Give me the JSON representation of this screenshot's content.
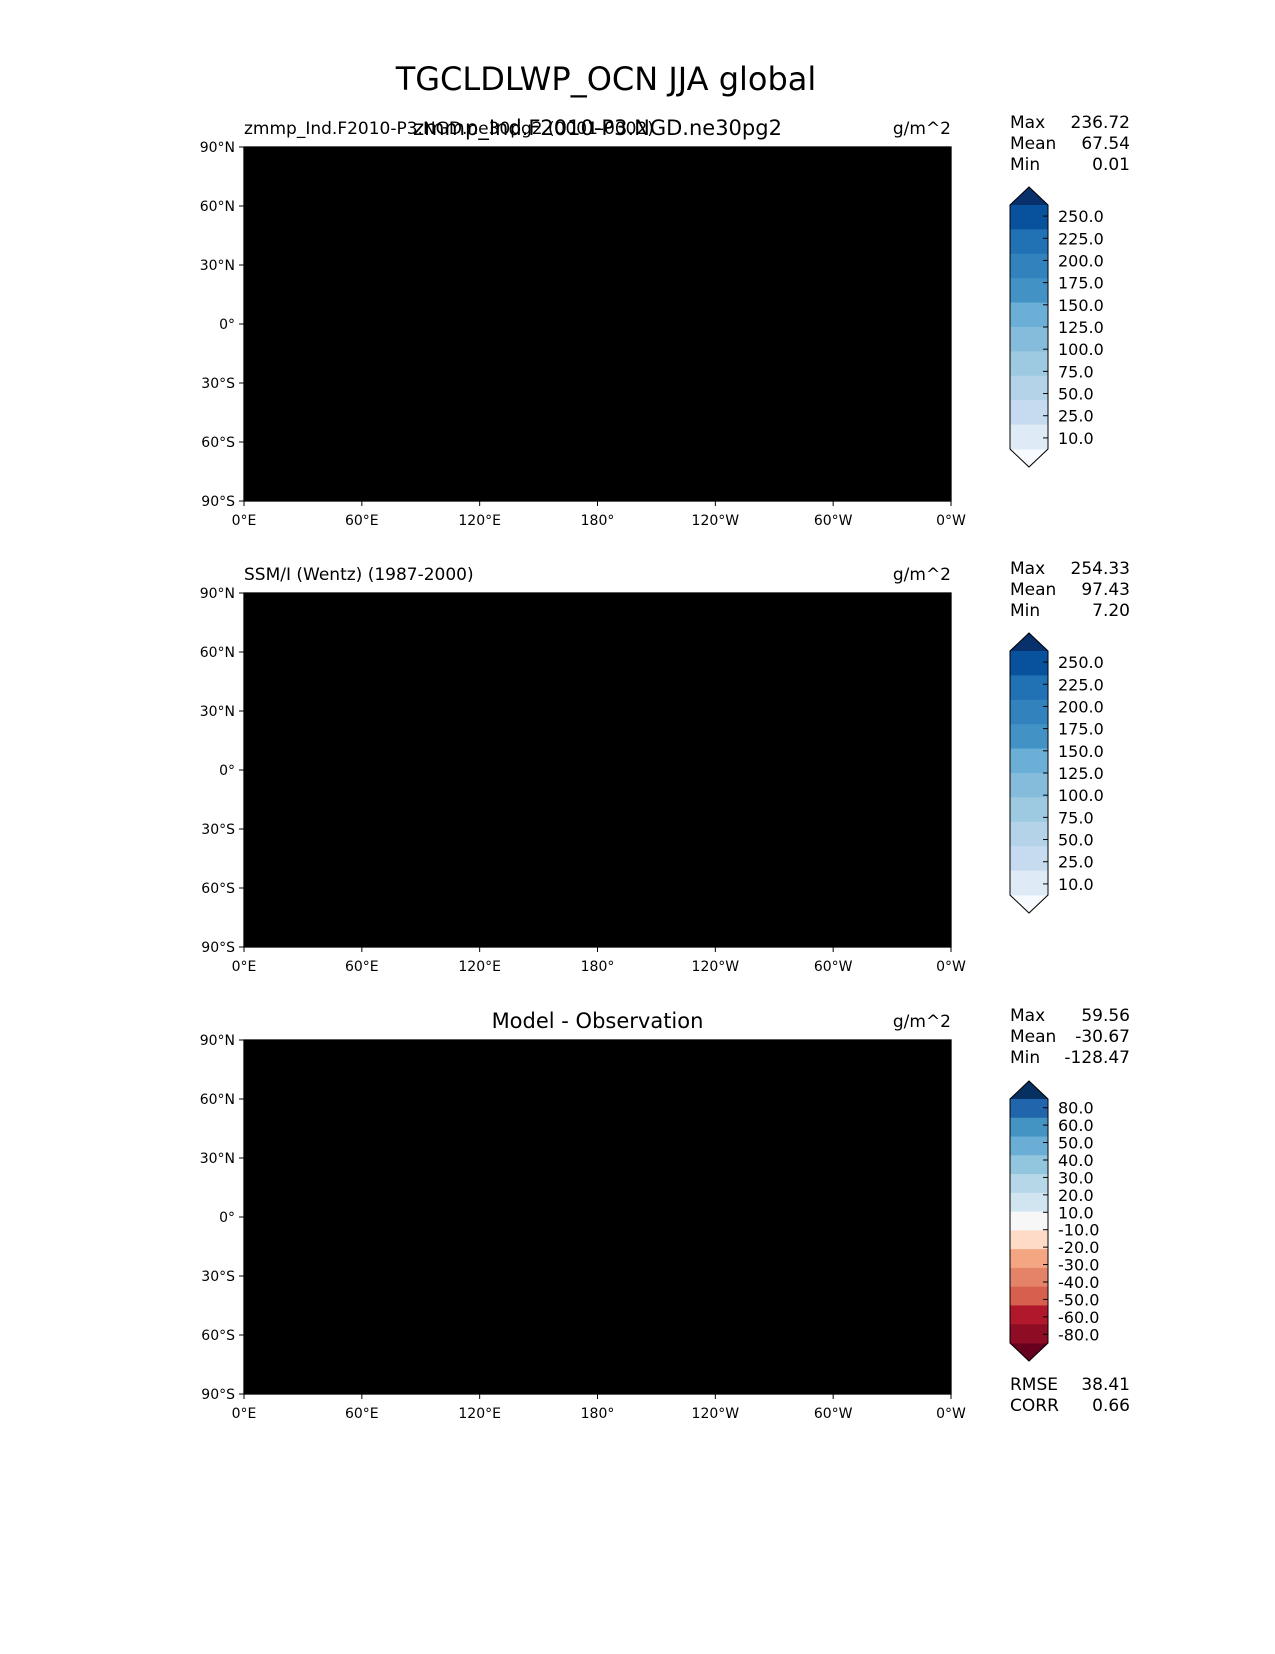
{
  "title": "TGCLDLWP_OCN JJA global",
  "lon_ticks": [
    "0°E",
    "60°E",
    "120°E",
    "180°",
    "120°W",
    "60°W",
    "0°W"
  ],
  "lat_ticks": [
    "90°N",
    "60°N",
    "30°N",
    "0°",
    "30°S",
    "60°S",
    "90°S"
  ],
  "panels": [
    {
      "id": "model",
      "left_title": "zmmp_Ind.F2010-P3.NGD.ne30pg2 (0001-0002)",
      "center_title": "zmmp_Ind.F2010-P3.NGD.ne30pg2",
      "units": "g/m^2",
      "stats": [
        {
          "label": "Max",
          "value": "236.72"
        },
        {
          "label": "Mean",
          "value": "67.54"
        },
        {
          "label": "Min",
          "value": "0.01"
        }
      ],
      "colorbar_labels": [
        "250.0",
        "225.0",
        "200.0",
        "175.0",
        "150.0",
        "125.0",
        "100.0",
        "75.0",
        "50.0",
        "25.0",
        "10.0"
      ],
      "colors": {
        "ocean_base": "#c6dbef",
        "band": "#9ecae1",
        "strong": "#4292c6",
        "peak": "#2171b5",
        "poleward": "#deebf7"
      }
    },
    {
      "id": "obs",
      "left_title": "SSM/I (Wentz) (1987-2000)",
      "center_title": "",
      "units": "g/m^2",
      "stats": [
        {
          "label": "Max",
          "value": "254.33"
        },
        {
          "label": "Mean",
          "value": "97.43"
        },
        {
          "label": "Min",
          "value": "7.20"
        }
      ],
      "colorbar_labels": [
        "250.0",
        "225.0",
        "200.0",
        "175.0",
        "150.0",
        "125.0",
        "100.0",
        "75.0",
        "50.0",
        "25.0",
        "10.0"
      ],
      "colors": {
        "ocean_base": "#9ecae1",
        "band": "#6baed6",
        "strong": "#2171b5",
        "peak": "#08519c",
        "poleward": "#c6dbef"
      }
    },
    {
      "id": "diff",
      "left_title": "",
      "center_title": "Model - Observation",
      "units": "g/m^2",
      "stats": [
        {
          "label": "Max",
          "value": "59.56"
        },
        {
          "label": "Mean",
          "value": "-30.67"
        },
        {
          "label": "Min",
          "value": "-128.47"
        }
      ],
      "colorbar_labels": [
        "80.0",
        "60.0",
        "50.0",
        "40.0",
        "30.0",
        "20.0",
        "10.0",
        "-10.0",
        "-20.0",
        "-30.0",
        "-40.0",
        "-50.0",
        "-60.0",
        "-80.0"
      ],
      "bottom_stats": [
        {
          "label": "RMSE",
          "value": "38.41"
        },
        {
          "label": "CORR",
          "value": "0.66"
        }
      ],
      "colors": {
        "ocean_base": "#f4a582",
        "band": "#d6604d",
        "strong": "#b2182b",
        "peak": "#67001f",
        "poleward": "#fddbc7"
      }
    }
  ],
  "chart_data": [
    {
      "type": "heatmap",
      "title": "zmmp_Ind.F2010-P3.NGD.ne30pg2",
      "units": "g/m^2",
      "x": "longitude",
      "xlim": [
        0,
        360
      ],
      "y": "latitude",
      "ylim": [
        -90,
        90
      ],
      "levels": [
        10,
        25,
        50,
        75,
        100,
        125,
        150,
        175,
        200,
        225,
        250
      ],
      "stats": {
        "max": 236.72,
        "mean": 67.54,
        "min": 0.01
      }
    },
    {
      "type": "heatmap",
      "title": "SSM/I (Wentz) (1987-2000)",
      "units": "g/m^2",
      "x": "longitude",
      "xlim": [
        0,
        360
      ],
      "y": "latitude",
      "ylim": [
        -90,
        90
      ],
      "levels": [
        10,
        25,
        50,
        75,
        100,
        125,
        150,
        175,
        200,
        225,
        250
      ],
      "stats": {
        "max": 254.33,
        "mean": 97.43,
        "min": 7.2
      }
    },
    {
      "type": "heatmap",
      "title": "Model - Observation",
      "units": "g/m^2",
      "x": "longitude",
      "xlim": [
        0,
        360
      ],
      "y": "latitude",
      "ylim": [
        -90,
        90
      ],
      "levels": [
        -80,
        -60,
        -50,
        -40,
        -30,
        -20,
        -10,
        10,
        20,
        30,
        40,
        50,
        60,
        80
      ],
      "stats": {
        "max": 59.56,
        "mean": -30.67,
        "min": -128.47,
        "rmse": 38.41,
        "corr": 0.66
      }
    }
  ]
}
